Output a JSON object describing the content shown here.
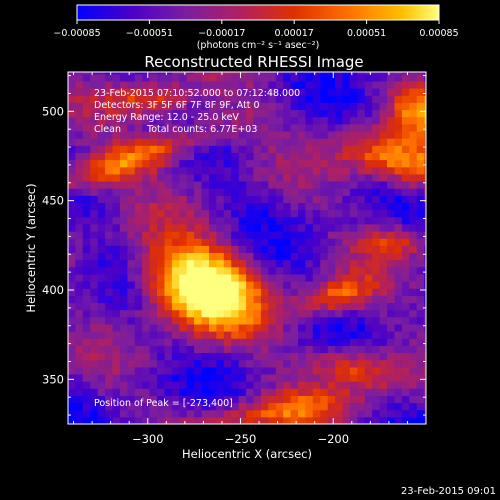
{
  "chart_data": {
    "type": "heatmap",
    "title": "Reconstructed RHESSI Image",
    "xlabel": "Heliocentric X (arcsec)",
    "ylabel": "Heliocentric Y (arcsec)",
    "xlim": [
      -343,
      -150
    ],
    "ylim": [
      325,
      522
    ],
    "x_ticks": [
      -300,
      -250,
      -200
    ],
    "y_ticks": [
      350,
      400,
      450,
      500
    ],
    "x_tick_labels": [
      "−300",
      "−250",
      "−200"
    ],
    "y_tick_labels": [
      "350",
      "400",
      "450",
      "500"
    ],
    "colorbar": {
      "range": [
        -0.00085,
        0.00085
      ],
      "ticks": [
        "−0.00085",
        "−0.00051",
        "−0.00017",
        "0.00017",
        "0.00051",
        "0.00085"
      ],
      "units_label": "(photons cm⁻² s⁻¹ asec⁻²)",
      "colors": [
        "#0000ff",
        "#4a00c8",
        "#7a1ea0",
        "#b02060",
        "#e03000",
        "#ff7000",
        "#ffc000",
        "#ffff80"
      ]
    },
    "peak_position": [
      -273,
      400
    ],
    "sources": [
      {
        "x": -273,
        "y": 400,
        "width": 22,
        "height": 16,
        "angle": -25,
        "amplitude": 1.0
      },
      {
        "x": -310,
        "y": 472,
        "width": 38,
        "height": 7,
        "angle": 20,
        "amplitude": 0.55
      },
      {
        "x": -165,
        "y": 470,
        "width": 24,
        "height": 10,
        "angle": -15,
        "amplitude": 0.6
      },
      {
        "x": -155,
        "y": 500,
        "width": 12,
        "height": 10,
        "angle": 0,
        "amplitude": 0.45
      },
      {
        "x": -300,
        "y": 505,
        "width": 16,
        "height": 7,
        "angle": 0,
        "amplitude": 0.4
      },
      {
        "x": -200,
        "y": 395,
        "width": 14,
        "height": 7,
        "angle": 15,
        "amplitude": 0.45
      },
      {
        "x": -190,
        "y": 355,
        "width": 18,
        "height": 8,
        "angle": -10,
        "amplitude": 0.45
      },
      {
        "x": -235,
        "y": 330,
        "width": 30,
        "height": 7,
        "angle": 10,
        "amplitude": 0.4
      },
      {
        "x": -170,
        "y": 425,
        "width": 12,
        "height": 6,
        "angle": 0,
        "amplitude": 0.35
      }
    ]
  },
  "annotations": {
    "line1": "23-Feb-2015 07:10:52.000 to 07:12:48.000",
    "line2": "Detectors: 3F 5F 6F 7F 8F 9F, Att 0",
    "line3": "Energy Range: 12.0 - 25.0 keV",
    "line4_method": "Clean",
    "line4_counts": "Total counts: 6.77E+03",
    "peak": "Position of Peak = [-273,400]"
  },
  "footer_timestamp": "23-Feb-2015 09:01"
}
